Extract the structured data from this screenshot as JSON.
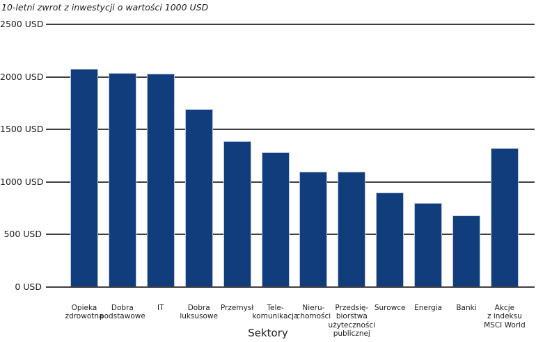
{
  "chart_data": {
    "type": "bar",
    "title": "10-letni zwrot z inwestycji o wartości 1000 USD",
    "xlabel": "Sektory",
    "ylabel": "",
    "ylim": [
      0,
      2500
    ],
    "grid": true,
    "legend": "none",
    "y_ticks": [
      "2500 USD",
      "2000 USD",
      "1500 USD",
      "1000 USD",
      "500 USD",
      "0 USD"
    ],
    "y_tick_values": [
      2500,
      2000,
      1500,
      1000,
      500,
      0
    ],
    "categories": [
      "Opieka zdrowotna",
      "Dobra podstawowe",
      "IT",
      "Dobra luksusowe",
      "Przemysł",
      "Telekomunikacja",
      "Nieruchomości",
      "Przedsiębiorstwa użyteczności publicznej",
      "Surowce",
      "Energia",
      "Banki",
      "Akcje z indeksu MSCI World"
    ],
    "category_lines": [
      [
        "Opieka",
        "zdrowotna"
      ],
      [
        "Dobra",
        "podstawowe"
      ],
      [
        "IT"
      ],
      [
        "Dobra",
        "luksusowe"
      ],
      [
        "Przemysł"
      ],
      [
        "Tele-",
        "komunikacja"
      ],
      [
        "Nieru-",
        "chomości"
      ],
      [
        "Przedsię-",
        "biorstwa",
        "użyteczności",
        "publicznej"
      ],
      [
        "Surowce"
      ],
      [
        "Energia"
      ],
      [
        "Banki"
      ],
      [
        "Akcje",
        "z indeksu",
        "MSCI World"
      ]
    ],
    "values": [
      2080,
      2040,
      2030,
      1690,
      1390,
      1280,
      1100,
      1100,
      900,
      800,
      680,
      1320
    ],
    "unit": "USD",
    "bar_color": "#123d7c",
    "bar_border_color": "#b9c6de",
    "gridline_color": "#404040",
    "text_color": "#1b1b1b"
  }
}
